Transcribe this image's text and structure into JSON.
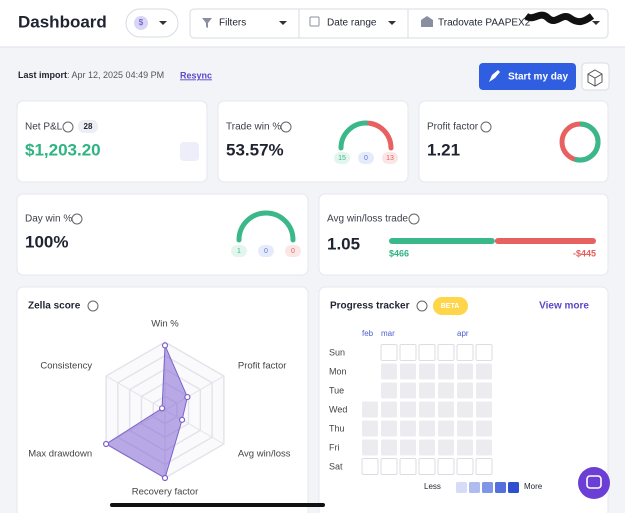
{
  "header": {
    "title": "Dashboard",
    "currency": "$",
    "filters": "Filters",
    "date_range": "Date range",
    "account": "Tradovate PAAPEX2"
  },
  "import_bar": {
    "label": "Last import",
    "timestamp": ": Apr 12, 2025 04:49 PM",
    "resync": "Resync",
    "start_button": "Start my day"
  },
  "stats": {
    "net_pnl": {
      "label": "Net P&L",
      "count": 28,
      "value": "$1,203.20"
    },
    "trade_win": {
      "label": "Trade win %",
      "value": "53.57%",
      "wins": 15,
      "breakeven": 0,
      "losses": 13
    },
    "profit_factor": {
      "label": "Profit factor",
      "value": "1.21"
    },
    "day_win": {
      "label": "Day win %",
      "value": "100%",
      "wins": 1,
      "breakeven": 0,
      "losses": 0
    },
    "avg_win_loss": {
      "label": "Avg win/loss trade",
      "value": "1.05",
      "avg_win": "$466",
      "avg_loss": "-$445"
    }
  },
  "zella_score": {
    "title": "Zella score",
    "axes": [
      {
        "label": "Win %",
        "score": 95
      },
      {
        "label": "Profit factor",
        "score": 38
      },
      {
        "label": "Avg win/loss",
        "score": 29
      },
      {
        "label": "Recovery factor",
        "score": 100
      },
      {
        "label": "Max drawdown",
        "score": 100
      },
      {
        "label": "Consistency",
        "score": 5
      }
    ]
  },
  "progress_tracker": {
    "title": "Progress tracker",
    "badge": "BETA",
    "link": "View more",
    "months": [
      "feb",
      "mar",
      "apr"
    ],
    "days": [
      "Sun",
      "Mon",
      "Tue",
      "Wed",
      "Thu",
      "Fri",
      "Sat"
    ],
    "legend_less": "Less",
    "legend_more": "More"
  }
}
